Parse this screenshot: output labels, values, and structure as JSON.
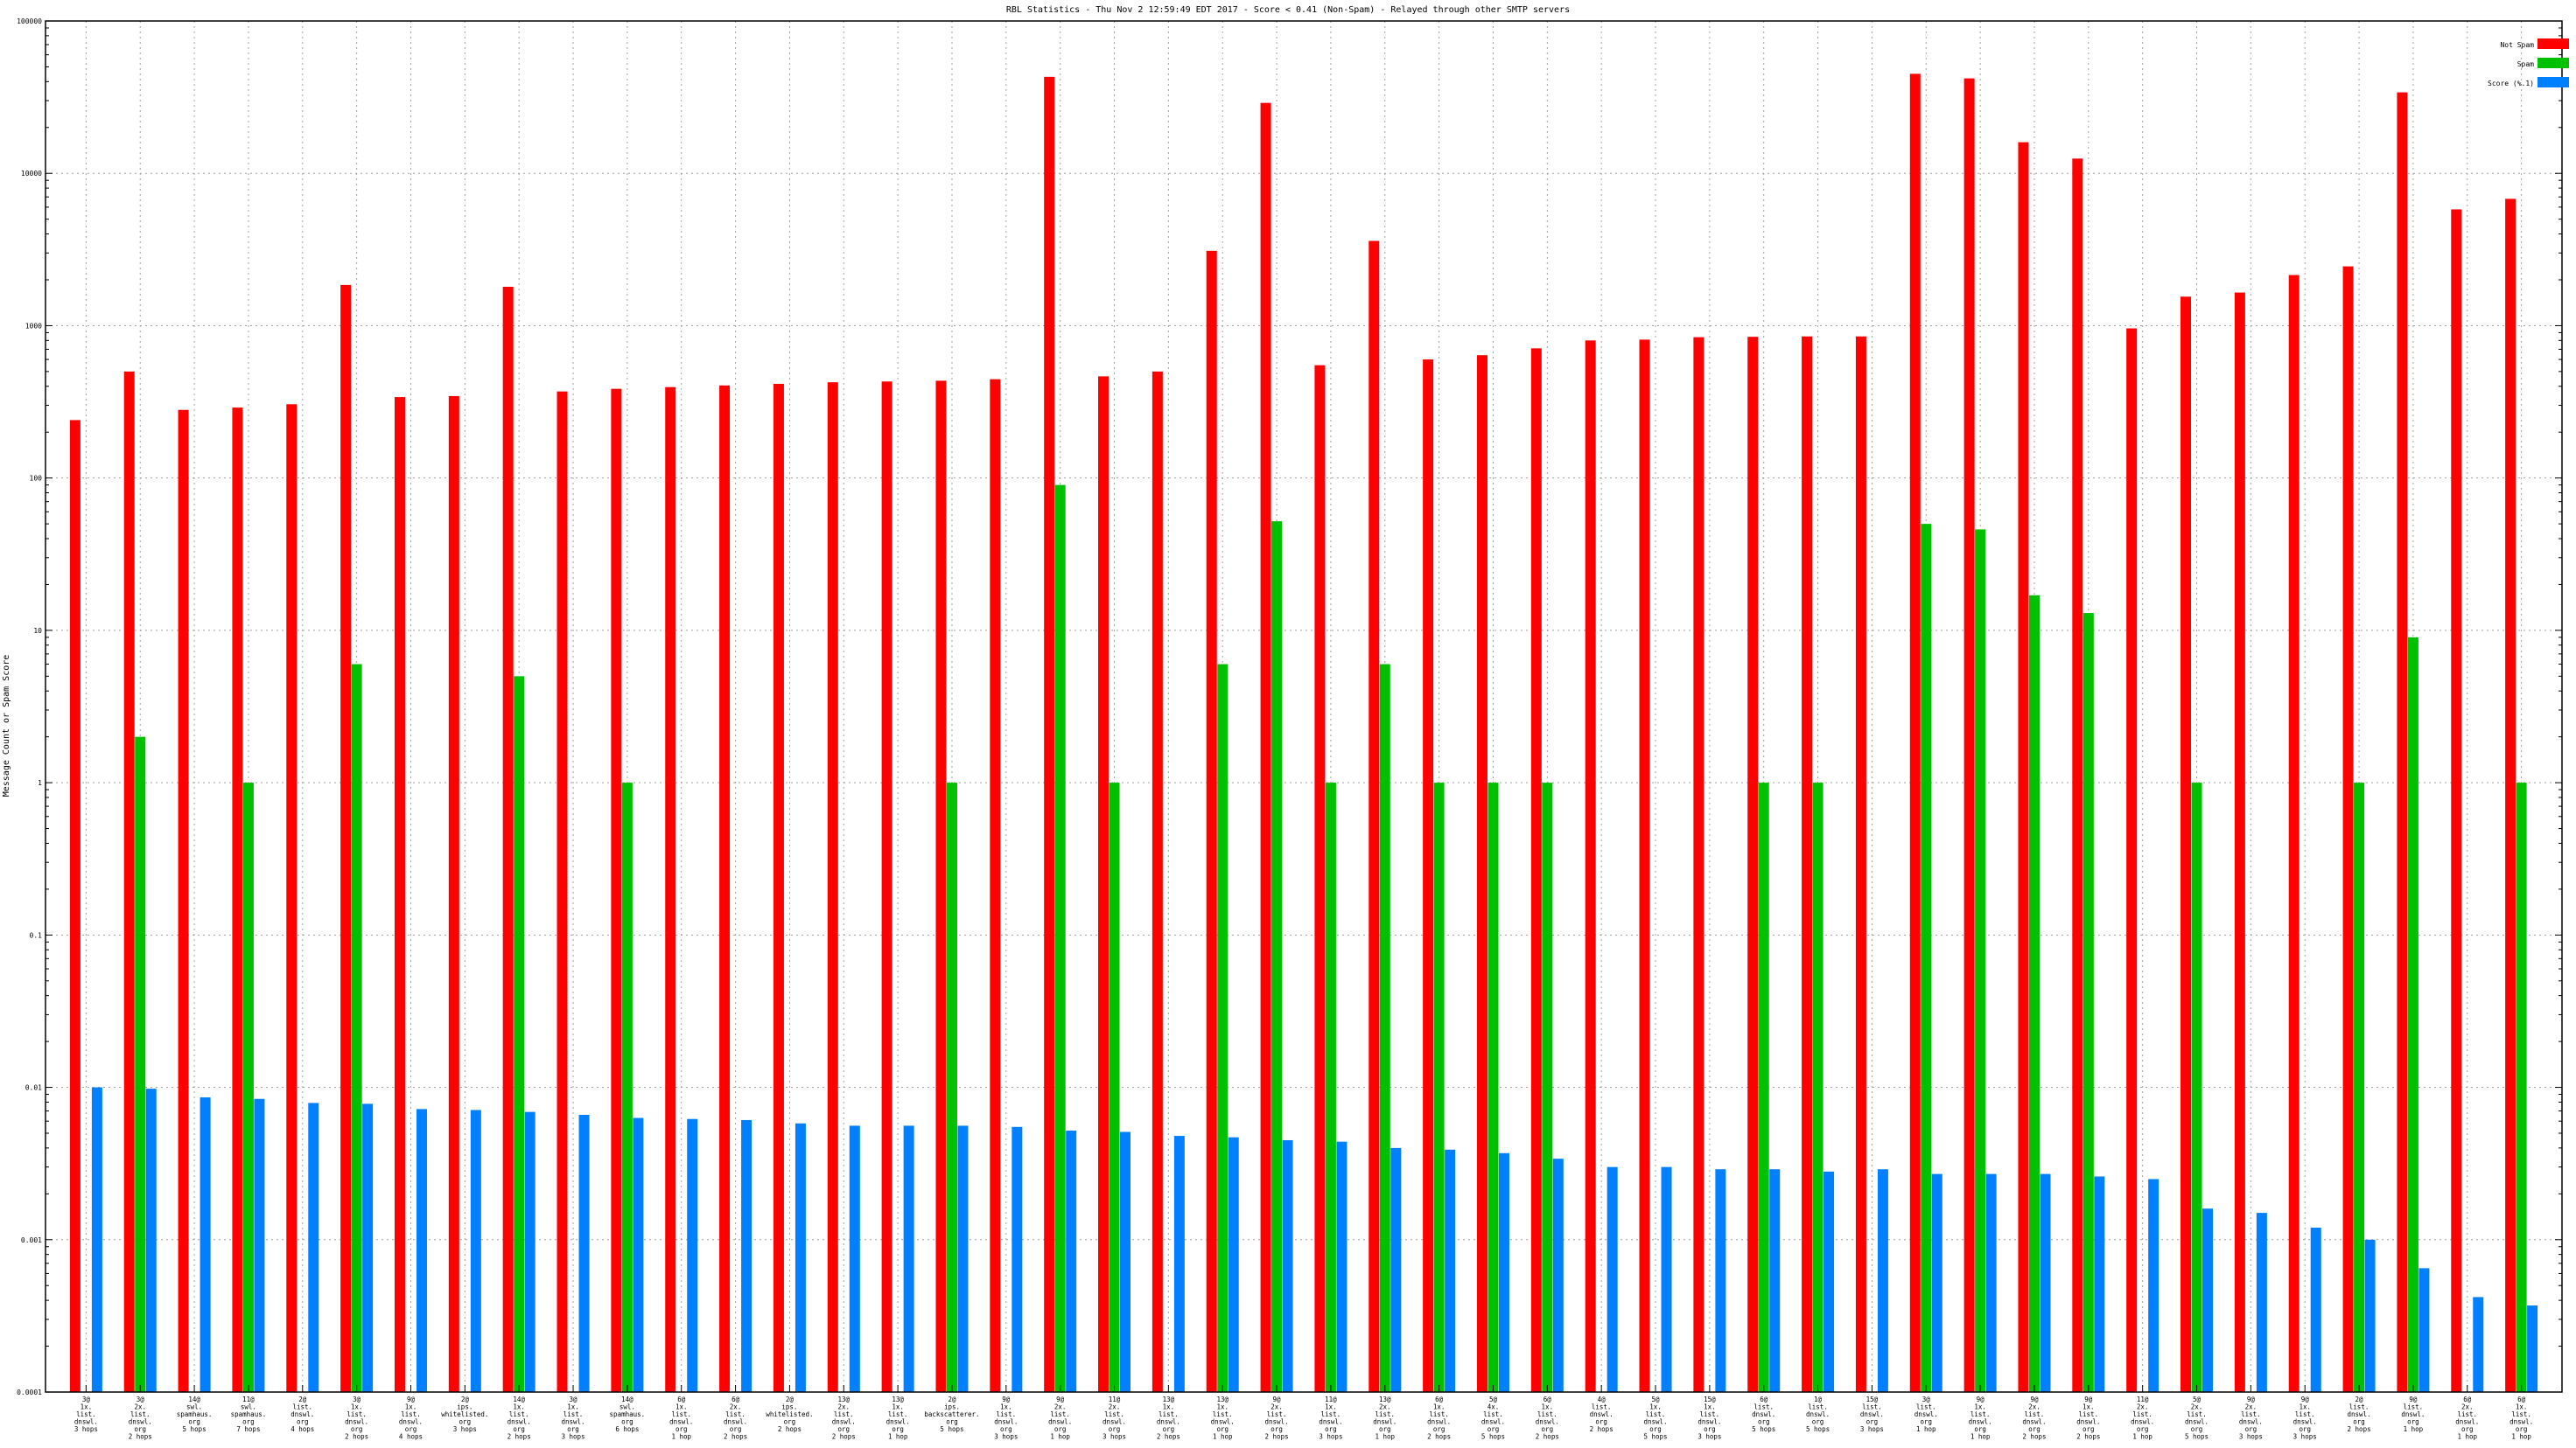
{
  "chart_data": {
    "type": "bar",
    "title": "RBL Statistics - Thu Nov  2 12:59:49 EDT 2017 - Score < 0.41 (Non-Spam) - Relayed through other SMTP servers",
    "xlabel": "",
    "ylabel": "Message Count or Spam Score",
    "yscale": "log",
    "ylim": [
      0.0001,
      100000
    ],
    "yticks": [
      "0.0001",
      "0.001",
      "0.01",
      "0.1",
      "1",
      "10",
      "100",
      "1000",
      "10000",
      "100000"
    ],
    "grid": true,
    "legend_position": "top-right",
    "categories": [
      [
        "3@",
        "1x.",
        "list.",
        "dnswl.",
        "3 hops"
      ],
      [
        "3@",
        "2x.",
        "list.",
        "dnswl.",
        "org",
        "2 hops"
      ],
      [
        "14@",
        "swl.",
        "spamhaus.",
        "org",
        "5 hops"
      ],
      [
        "11@",
        "swl.",
        "spamhaus.",
        "org",
        "7 hops"
      ],
      [
        "2@",
        "list.",
        "dnswl.",
        "org",
        "4 hops"
      ],
      [
        "3@",
        "1x.",
        "list.",
        "dnswl.",
        "org",
        "2 hops"
      ],
      [
        "9@",
        "1x.",
        "list.",
        "dnswl.",
        "org",
        "4 hops"
      ],
      [
        "2@",
        "ips.",
        "whitelisted.",
        "org",
        "3 hops"
      ],
      [
        "14@",
        "1x.",
        "list.",
        "dnswl.",
        "org",
        "2 hops"
      ],
      [
        "3@",
        "1x.",
        "list.",
        "dnswl.",
        "org",
        "3 hops"
      ],
      [
        "14@",
        "swl.",
        "spamhaus.",
        "org",
        "6 hops"
      ],
      [
        "6@",
        "1x.",
        "list.",
        "dnswl.",
        "org",
        "1 hop"
      ],
      [
        "6@",
        "2x.",
        "list.",
        "dnswl.",
        "org",
        "2 hops"
      ],
      [
        "2@",
        "ips.",
        "whitelisted.",
        "org",
        "2 hops"
      ],
      [
        "13@",
        "2x.",
        "list.",
        "dnswl.",
        "org",
        "2 hops"
      ],
      [
        "13@",
        "1x.",
        "list.",
        "dnswl.",
        "org",
        "1 hop"
      ],
      [
        "2@",
        "ips.",
        "backscatterer.",
        "org",
        "5 hops"
      ],
      [
        "9@",
        "1x.",
        "list.",
        "dnswl.",
        "org",
        "3 hops"
      ],
      [
        "9@",
        "2x.",
        "list.",
        "dnswl.",
        "org",
        "1 hop"
      ],
      [
        "11@",
        "2x.",
        "list.",
        "dnswl.",
        "org",
        "3 hops"
      ],
      [
        "13@",
        "1x.",
        "list.",
        "dnswl.",
        "org",
        "2 hops"
      ],
      [
        "13@",
        "1x.",
        "list.",
        "dnswl.",
        "org",
        "1 hop"
      ],
      [
        "9@",
        "2x.",
        "list.",
        "dnswl.",
        "org",
        "2 hops"
      ],
      [
        "11@",
        "1x.",
        "list.",
        "dnswl.",
        "org",
        "3 hops"
      ],
      [
        "13@",
        "2x.",
        "list.",
        "dnswl.",
        "org",
        "1 hop"
      ],
      [
        "6@",
        "1x.",
        "list.",
        "dnswl.",
        "org",
        "2 hops"
      ],
      [
        "5@",
        "4x.",
        "list.",
        "dnswl.",
        "org",
        "5 hops"
      ],
      [
        "6@",
        "1x.",
        "list.",
        "dnswl.",
        "org",
        "2 hops"
      ],
      [
        "4@",
        "list.",
        "dnswl.",
        "org",
        "2 hops"
      ],
      [
        "5@",
        "1x.",
        "list.",
        "dnswl.",
        "org",
        "5 hops"
      ],
      [
        "15@",
        "1x.",
        "list.",
        "dnswl.",
        "org",
        "3 hops"
      ],
      [
        "6@",
        "list.",
        "dnswl.",
        "org",
        "5 hops"
      ],
      [
        "1@",
        "list.",
        "dnswl.",
        "org",
        "5 hops"
      ],
      [
        "15@",
        "list.",
        "dnswl.",
        "org",
        "3 hops"
      ],
      [
        "3@",
        "list.",
        "dnswl.",
        "org",
        "1 hop"
      ],
      [
        "9@",
        "1x.",
        "list.",
        "dnswl.",
        "org",
        "1 hop"
      ],
      [
        "9@",
        "2x.",
        "list.",
        "dnswl.",
        "org",
        "2 hops"
      ],
      [
        "9@",
        "1x.",
        "list.",
        "dnswl.",
        "org",
        "2 hops"
      ],
      [
        "11@",
        "2x.",
        "list.",
        "dnswl.",
        "org",
        "1 hop"
      ],
      [
        "5@",
        "2x.",
        "list.",
        "dnswl.",
        "org",
        "5 hops"
      ],
      [
        "9@",
        "2x.",
        "list.",
        "dnswl.",
        "org",
        "3 hops"
      ],
      [
        "9@",
        "1x.",
        "list.",
        "dnswl.",
        "org",
        "3 hops"
      ],
      [
        "2@",
        "list.",
        "dnswl.",
        "org",
        "2 hops"
      ],
      [
        "9@",
        "list.",
        "dnswl.",
        "org",
        "1 hop"
      ],
      [
        "6@",
        "2x.",
        "list.",
        "dnswl.",
        "org",
        "1 hop"
      ],
      [
        "6@",
        "1x.",
        "list.",
        "dnswl.",
        "org",
        "1 hop"
      ]
    ],
    "series": [
      {
        "name": "Not Spam",
        "color": "#ff0000",
        "values": [
          240,
          500,
          280,
          290,
          305,
          1850,
          340,
          345,
          1800,
          370,
          385,
          395,
          405,
          415,
          425,
          430,
          435,
          445,
          43000,
          465,
          500,
          3100,
          29000,
          550,
          3600,
          600,
          640,
          710,
          800,
          810,
          840,
          845,
          850,
          850,
          45000,
          42000,
          16000,
          12500,
          960,
          1550,
          1650,
          2150,
          2450,
          34000,
          5800,
          6800
        ]
      },
      {
        "name": "Spam",
        "color": "#00c000",
        "values": [
          0,
          2,
          0,
          1,
          0,
          6,
          0,
          0,
          5,
          0,
          1,
          0,
          0,
          0,
          0,
          0,
          1,
          0,
          90,
          1,
          0,
          6,
          52,
          1,
          6,
          1,
          1,
          1,
          0,
          0,
          0,
          1,
          1,
          0,
          50,
          46,
          17,
          13,
          0,
          1,
          0,
          0,
          1,
          9,
          0,
          1
        ]
      },
      {
        "name": "Score (%.1)",
        "color": "#0080ff",
        "values": [
          0.01,
          0.0098,
          0.0086,
          0.0084,
          0.0079,
          0.0078,
          0.0072,
          0.0071,
          0.0069,
          0.0066,
          0.0063,
          0.0062,
          0.0061,
          0.0058,
          0.0056,
          0.0056,
          0.0056,
          0.0055,
          0.0052,
          0.0051,
          0.0048,
          0.0047,
          0.0045,
          0.0044,
          0.004,
          0.0039,
          0.0037,
          0.0034,
          0.003,
          0.003,
          0.0029,
          0.0029,
          0.0028,
          0.0029,
          0.0027,
          0.0027,
          0.0027,
          0.0026,
          0.0025,
          0.0016,
          0.0015,
          0.0012,
          0.001,
          0.00065,
          0.00042,
          0.00037
        ]
      }
    ]
  }
}
